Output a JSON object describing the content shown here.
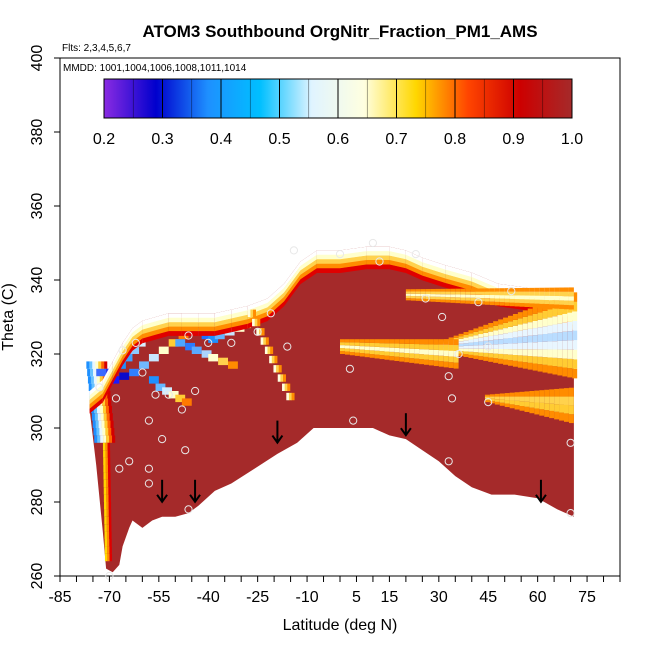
{
  "chart_data": {
    "type": "heatmap",
    "title": "ATOM3 Southbound OrgNitr_Fraction_PM1_AMS",
    "subtitle_flights": "Flts: 2,3,4,5,6,7",
    "subtitle_dates": "MMDD: 1001,1004,1006,1008,1011,1014",
    "xlabel": "Latitude (deg N)",
    "ylabel": "Theta (C)",
    "xlim": [
      -85,
      85
    ],
    "ylim": [
      260,
      400
    ],
    "x_ticks": [
      "-85",
      "-70",
      "-55",
      "-40",
      "-25",
      "-10",
      "5",
      "15",
      "30",
      "45",
      "60",
      "75"
    ],
    "x_tick_values": [
      -85,
      -70,
      -55,
      -40,
      -25,
      -10,
      5,
      15,
      30,
      45,
      60,
      75
    ],
    "y_ticks": [
      "260",
      "280",
      "300",
      "320",
      "340",
      "360",
      "380",
      "400"
    ],
    "y_tick_values": [
      260,
      280,
      300,
      320,
      340,
      360,
      380,
      400
    ],
    "colorbar": {
      "ticks": [
        "0.2",
        "0.3",
        "0.4",
        "0.5",
        "0.6",
        "0.7",
        "0.8",
        "0.9",
        "1.0"
      ],
      "range": [
        0.2,
        1.0
      ],
      "colors": [
        "#8a2be2",
        "#0000cd",
        "#1e90ff",
        "#00bfff",
        "#e0f4ff",
        "#ffffe0",
        "#ffd700",
        "#ff4500",
        "#cd0000",
        "#a52a2a"
      ]
    },
    "fill_color_dominant": "#a52a2a",
    "arrows_latitude": [
      -54,
      -44,
      -19,
      20,
      61
    ],
    "arrows_theta_top": [
      286,
      286,
      302,
      304,
      286
    ],
    "sample_points": [
      {
        "lat": -73,
        "theta": 311
      },
      {
        "lat": -68,
        "theta": 308
      },
      {
        "lat": -66,
        "theta": 321
      },
      {
        "lat": -62,
        "theta": 323
      },
      {
        "lat": -60,
        "theta": 315
      },
      {
        "lat": -58,
        "theta": 302
      },
      {
        "lat": -56,
        "theta": 309
      },
      {
        "lat": -54,
        "theta": 297
      },
      {
        "lat": -52,
        "theta": 309
      },
      {
        "lat": -48,
        "theta": 305
      },
      {
        "lat": -47,
        "theta": 294
      },
      {
        "lat": -46,
        "theta": 325
      },
      {
        "lat": -44,
        "theta": 310
      },
      {
        "lat": -40,
        "theta": 323
      },
      {
        "lat": -33,
        "theta": 323
      },
      {
        "lat": -25,
        "theta": 326
      },
      {
        "lat": -21,
        "theta": 331
      },
      {
        "lat": -16,
        "theta": 322
      },
      {
        "lat": -14,
        "theta": 348
      },
      {
        "lat": 0,
        "theta": 347
      },
      {
        "lat": 3,
        "theta": 316
      },
      {
        "lat": 4,
        "theta": 302
      },
      {
        "lat": 10,
        "theta": 350
      },
      {
        "lat": 12,
        "theta": 345
      },
      {
        "lat": 23,
        "theta": 347
      },
      {
        "lat": 26,
        "theta": 335
      },
      {
        "lat": 31,
        "theta": 330
      },
      {
        "lat": 33,
        "theta": 314
      },
      {
        "lat": 34,
        "theta": 308
      },
      {
        "lat": 36,
        "theta": 320
      },
      {
        "lat": 42,
        "theta": 334
      },
      {
        "lat": 45,
        "theta": 307
      },
      {
        "lat": 45,
        "theta": 322
      },
      {
        "lat": 52,
        "theta": 337
      },
      {
        "lat": 33,
        "theta": 291
      },
      {
        "lat": -67,
        "theta": 289
      },
      {
        "lat": -64,
        "theta": 291
      },
      {
        "lat": -58,
        "theta": 289
      },
      {
        "lat": -58,
        "theta": 285
      },
      {
        "lat": -46,
        "theta": 278
      },
      {
        "lat": 70,
        "theta": 296
      },
      {
        "lat": 70,
        "theta": 277
      },
      {
        "lat": -70,
        "theta": 260
      }
    ]
  }
}
